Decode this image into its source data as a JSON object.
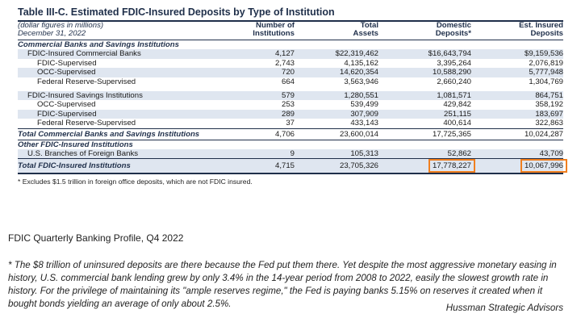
{
  "table": {
    "title": "Table III-C.  Estimated FDIC-Insured Deposits by Type of Institution",
    "header_left_line1": "(dollar figures in millions)",
    "header_left_line2": "December 31, 2022",
    "col_institutions_line1": "Number of",
    "col_institutions_line2": "Institutions",
    "col_assets_line1": "Total",
    "col_assets_line2": "Assets",
    "col_domestic_line1": "Domestic",
    "col_domestic_line2": "Deposits*",
    "col_insured_line1": "Est. Insured",
    "col_insured_line2": "Deposits",
    "section1": "Commercial Banks and Savings Institutions",
    "rows": [
      {
        "label": "FDIC-Insured Commercial Banks",
        "institutions": "4,127",
        "assets": "$22,319,462",
        "domestic": "$16,643,794",
        "insured": "$9,159,536"
      },
      {
        "label": "FDIC-Supervised",
        "institutions": "2,743",
        "assets": "4,135,162",
        "domestic": "3,395,264",
        "insured": "2,076,819"
      },
      {
        "label": "OCC-Supervised",
        "institutions": "720",
        "assets": "14,620,354",
        "domestic": "10,588,290",
        "insured": "5,777,948"
      },
      {
        "label": "Federal Reserve-Supervised",
        "institutions": "664",
        "assets": "3,563,946",
        "domestic": "2,660,240",
        "insured": "1,304,769"
      },
      {
        "label": "FDIC-Insured Savings Institutions",
        "institutions": "579",
        "assets": "1,280,551",
        "domestic": "1,081,571",
        "insured": "864,751"
      },
      {
        "label": "OCC-Supervised",
        "institutions": "253",
        "assets": "539,499",
        "domestic": "429,842",
        "insured": "358,192"
      },
      {
        "label": "FDIC-Supervised",
        "institutions": "289",
        "assets": "307,909",
        "domestic": "251,115",
        "insured": "183,697"
      },
      {
        "label": "Federal Reserve-Supervised",
        "institutions": "37",
        "assets": "433,143",
        "domestic": "400,614",
        "insured": "322,863"
      }
    ],
    "total_cb": {
      "label": "Total Commercial Banks and Savings Institutions",
      "institutions": "4,706",
      "assets": "23,600,014",
      "domestic": "17,725,365",
      "insured": "10,024,287"
    },
    "section2": "Other FDIC-Insured Institutions",
    "foreign": {
      "label": "U.S. Branches of Foreign Banks",
      "institutions": "9",
      "assets": "105,313",
      "domestic": "52,862",
      "insured": "43,709"
    },
    "grand_total": {
      "label": "Total FDIC-Insured Institutions",
      "institutions": "4,715",
      "assets": "23,705,326",
      "domestic": "17,778,227",
      "insured": "10,067,996"
    },
    "footnote": "* Excludes $1.5 trillion in foreign office deposits, which are not FDIC insured.",
    "highlight_color": "#f07f1f"
  },
  "source": "FDIC Quarterly Banking Profile, Q4 2022",
  "commentary": "* The $8 trillion of uninsured deposits are there because the Fed put them there. Yet despite the most aggressive monetary easing in history, U.S. commercial bank lending grew by only 3.4% in the 14-year period from 2008 to 2022, easily the slowest growth rate in history. For the privilege of maintaining its \"ample reserves regime,\" the Fed is paying banks 5.15% on reserves it created when it bought bonds yielding an average of only about 2.5%.",
  "attribution": "Hussman Strategic Advisors"
}
